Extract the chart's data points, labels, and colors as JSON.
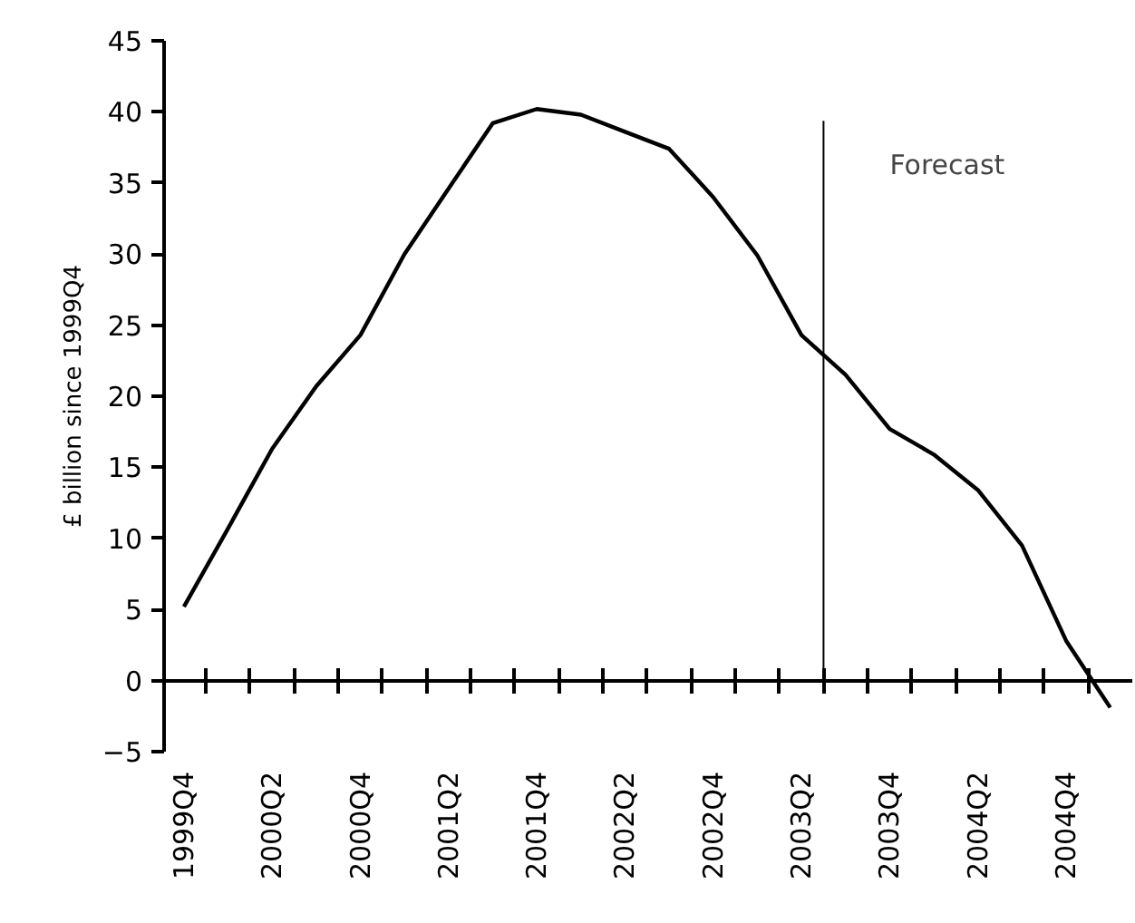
{
  "chart_data": {
    "type": "line",
    "ylabel": "£ billion since 1999Q4",
    "categories": [
      "1999Q4",
      null,
      "2000Q2",
      null,
      "2000Q4",
      null,
      "2001Q2",
      null,
      "2001Q4",
      null,
      "2002Q2",
      null,
      "2002Q4",
      null,
      "2003Q2",
      null,
      "2003Q4",
      null,
      "2004Q2",
      null,
      "2004Q4",
      null
    ],
    "series": [
      {
        "color": "#000000",
        "values": [
          5.2,
          10.7,
          16.3,
          20.7,
          24.3,
          30.0,
          34.6,
          39.2,
          40.2,
          39.8,
          38.6,
          37.4,
          34.0,
          29.9,
          24.3,
          21.5,
          17.7,
          15.9,
          13.4,
          9.5,
          2.8,
          -1.9
        ]
      }
    ],
    "ylim": [
      -5,
      45
    ],
    "yticks": [
      -5,
      0,
      5,
      10,
      15,
      20,
      25,
      30,
      35,
      40,
      45
    ],
    "annotations": [
      "Forecast"
    ],
    "grid": false,
    "marker": "none",
    "line_style": "solid"
  }
}
